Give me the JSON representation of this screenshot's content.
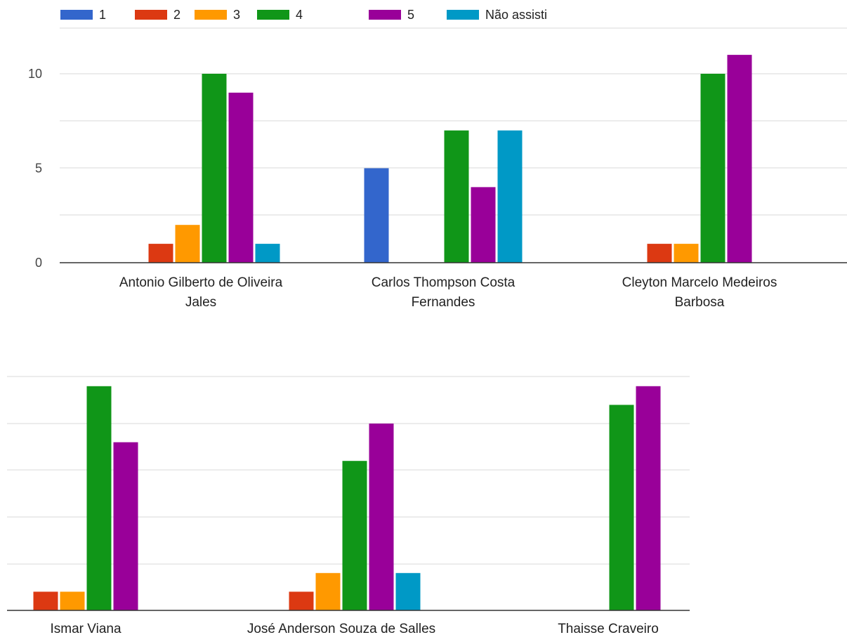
{
  "legend": {
    "items": [
      "1",
      "2",
      "3",
      "4",
      "5",
      "Não assisti"
    ]
  },
  "colors": [
    "#3366cc",
    "#dc3912",
    "#ff9900",
    "#109618",
    "#990099",
    "#0099c6"
  ],
  "chart_data": [
    {
      "type": "bar",
      "categories": [
        [
          "Antonio Gilberto de Oliveira",
          "Jales"
        ],
        [
          "Carlos Thompson Costa",
          "Fernandes"
        ],
        [
          "Cleyton Marcelo Medeiros",
          "Barbosa"
        ]
      ],
      "series": [
        {
          "name": "1",
          "values": [
            0,
            5,
            0
          ]
        },
        {
          "name": "2",
          "values": [
            1,
            0,
            1
          ]
        },
        {
          "name": "3",
          "values": [
            2,
            0,
            1
          ]
        },
        {
          "name": "4",
          "values": [
            10,
            7,
            10
          ]
        },
        {
          "name": "5",
          "values": [
            9,
            4,
            11
          ]
        },
        {
          "name": "Não assisti",
          "values": [
            1,
            7,
            0
          ]
        }
      ],
      "ylim": [
        0,
        10
      ],
      "yticks": [
        "0",
        "5",
        "10"
      ],
      "grid": true
    },
    {
      "type": "bar",
      "categories": [
        [
          "Ismar Viana"
        ],
        [
          "José Anderson Souza de Salles"
        ],
        [
          "Thaisse Craveiro"
        ]
      ],
      "series": [
        {
          "name": "1",
          "values": [
            0,
            0,
            0
          ]
        },
        {
          "name": "2",
          "values": [
            1,
            1,
            0
          ]
        },
        {
          "name": "3",
          "values": [
            1,
            2,
            0
          ]
        },
        {
          "name": "4",
          "values": [
            12,
            8,
            11
          ]
        },
        {
          "name": "5",
          "values": [
            9,
            10,
            12
          ]
        },
        {
          "name": "Não assisti",
          "values": [
            0,
            2,
            0
          ]
        }
      ],
      "ylim": [
        0,
        12
      ],
      "yticks": [],
      "grid": true
    }
  ]
}
